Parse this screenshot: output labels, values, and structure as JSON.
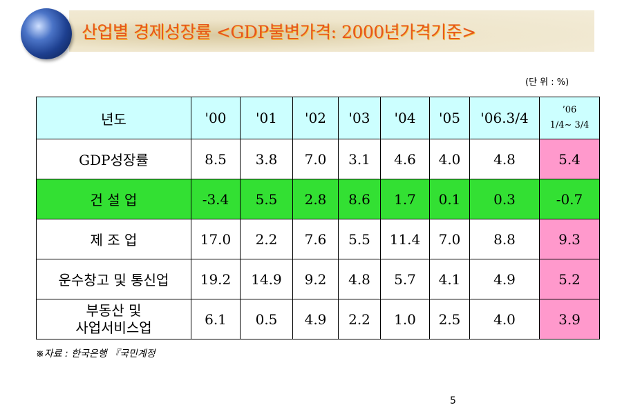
{
  "header": {
    "title": "산업별 경제성장률 <GDP불변가격: 2000년가격기준>",
    "unit": "(단 위 : %)"
  },
  "table": {
    "columns": [
      "년도",
      "'00",
      "'01",
      "'02",
      "'03",
      "'04",
      "'05",
      "'06.3/4",
      [
        "’06",
        "1/4~ 3/4"
      ]
    ],
    "rows": [
      {
        "label": [
          "GDP성장률"
        ],
        "values": [
          "8.5",
          "3.8",
          "7.0",
          "3.1",
          "4.6",
          "4.0",
          "4.8",
          "5.4"
        ]
      },
      {
        "label": [
          "건 설 업"
        ],
        "values": [
          "-3.4",
          "5.5",
          "2.8",
          "8.6",
          "1.7",
          "0.1",
          "0.3",
          "-0.7"
        ]
      },
      {
        "label": [
          "제 조 업"
        ],
        "values": [
          "17.0",
          "2.2",
          "7.6",
          "5.5",
          "11.4",
          "7.0",
          "8.8",
          "9.3"
        ]
      },
      {
        "label": [
          "운수창고 및 통신업"
        ],
        "values": [
          "19.2",
          "14.9",
          "9.2",
          "4.8",
          "5.7",
          "4.1",
          "4.9",
          "5.2"
        ]
      },
      {
        "label": [
          "부동산 및",
          "사업서비스업"
        ],
        "values": [
          "6.1",
          "0.5",
          "4.9",
          "2.2",
          "1.0",
          "2.5",
          "4.0",
          "3.9"
        ]
      }
    ]
  },
  "footer": {
    "source": "※자료 : 한국은행 『국민계정",
    "page": "5"
  }
}
